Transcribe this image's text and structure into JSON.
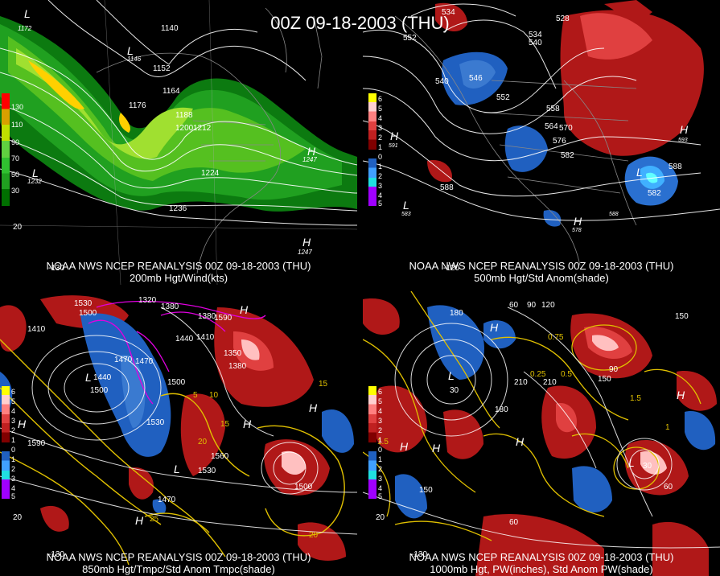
{
  "title": "00Z 09-18-2003 (THU)",
  "panels": [
    {
      "id": "p1",
      "caption1": "NOAA NWS NCEP REANALYSIS 00Z 09-18-2003 (THU)",
      "caption2": "200mb Hgt/Wind(kts)",
      "legend": [
        "130",
        "110",
        "90",
        "70",
        "50",
        "30"
      ],
      "legend_colors": [
        "#ff0000",
        "#d8a000",
        "#c0e000",
        "#30c030",
        "#20a020",
        "#007000"
      ],
      "contour_labels": [
        "1140",
        "1146",
        "1152",
        "1164",
        "1176",
        "1188",
        "1200",
        "1212",
        "1224",
        "1236",
        "1232",
        "1172",
        "1247",
        "1247"
      ],
      "axis_labels": [
        "-130",
        "20"
      ]
    },
    {
      "id": "p2",
      "caption1": "NOAA NWS NCEP REANALYSIS 00Z 09-18-2003 (THU)",
      "caption2": "500mb Hgt/Std Anom(shade)",
      "legend": [
        "6",
        "5",
        "4",
        "3",
        "2",
        "1",
        "0",
        "1",
        "2",
        "3",
        "4",
        "5"
      ],
      "legend_colors": [
        "#ffff00",
        "#ffd0d0",
        "#ff8080",
        "#e04040",
        "#c02020",
        "#800000",
        "#000000",
        "#003080",
        "#2060c0",
        "#40a0ff",
        "#20e0e0",
        "#a000ff"
      ],
      "contour_labels": [
        "552",
        "534",
        "528",
        "540",
        "546",
        "552",
        "558",
        "564",
        "570",
        "576",
        "582",
        "588",
        "588",
        "582",
        "534",
        "540",
        "593",
        "591",
        "583",
        "588",
        "578"
      ],
      "axis_labels": [
        "-120"
      ]
    },
    {
      "id": "p3",
      "caption1": "NOAA NWS NCEP REANALYSIS 00Z 09-18-2003 (THU)",
      "caption2": "850mb Hgt/Tmpc/Std Anom Tmpc(shade)",
      "legend": [
        "6",
        "5",
        "4",
        "3",
        "2",
        "1",
        "0",
        "1",
        "2",
        "3",
        "4",
        "5"
      ],
      "contour_labels": [
        "1530",
        "1500",
        "1410",
        "1320",
        "1380",
        "1440",
        "1470",
        "1500",
        "1530",
        "1590",
        "1560",
        "1530",
        "1500",
        "1470",
        "1440",
        "1380",
        "1350",
        "1380",
        "1410",
        "1500",
        "1590",
        "1470",
        "10",
        "15",
        "5",
        "15",
        "20",
        "25",
        "20"
      ],
      "axis_labels": [
        "-130",
        "20"
      ]
    },
    {
      "id": "p4",
      "caption1": "NOAA NWS NCEP REANALYSIS 00Z 09-18-2003 (THU)",
      "caption2": "1000mb Hgt, PW(inches), Std Anom PW(shade)",
      "legend": [
        "6",
        "5",
        "4",
        "3",
        "2",
        "1",
        "0",
        "1",
        "2",
        "3",
        "4",
        "5"
      ],
      "contour_labels": [
        "180",
        "60",
        "90",
        "120",
        "150",
        "210",
        "30",
        "0.25",
        "0.5",
        "1.5",
        "1",
        "0.75",
        "1.5",
        "30",
        "60",
        "90",
        "150",
        "180",
        "210",
        "150",
        "60"
      ],
      "axis_labels": [
        "-130",
        "20"
      ]
    }
  ]
}
